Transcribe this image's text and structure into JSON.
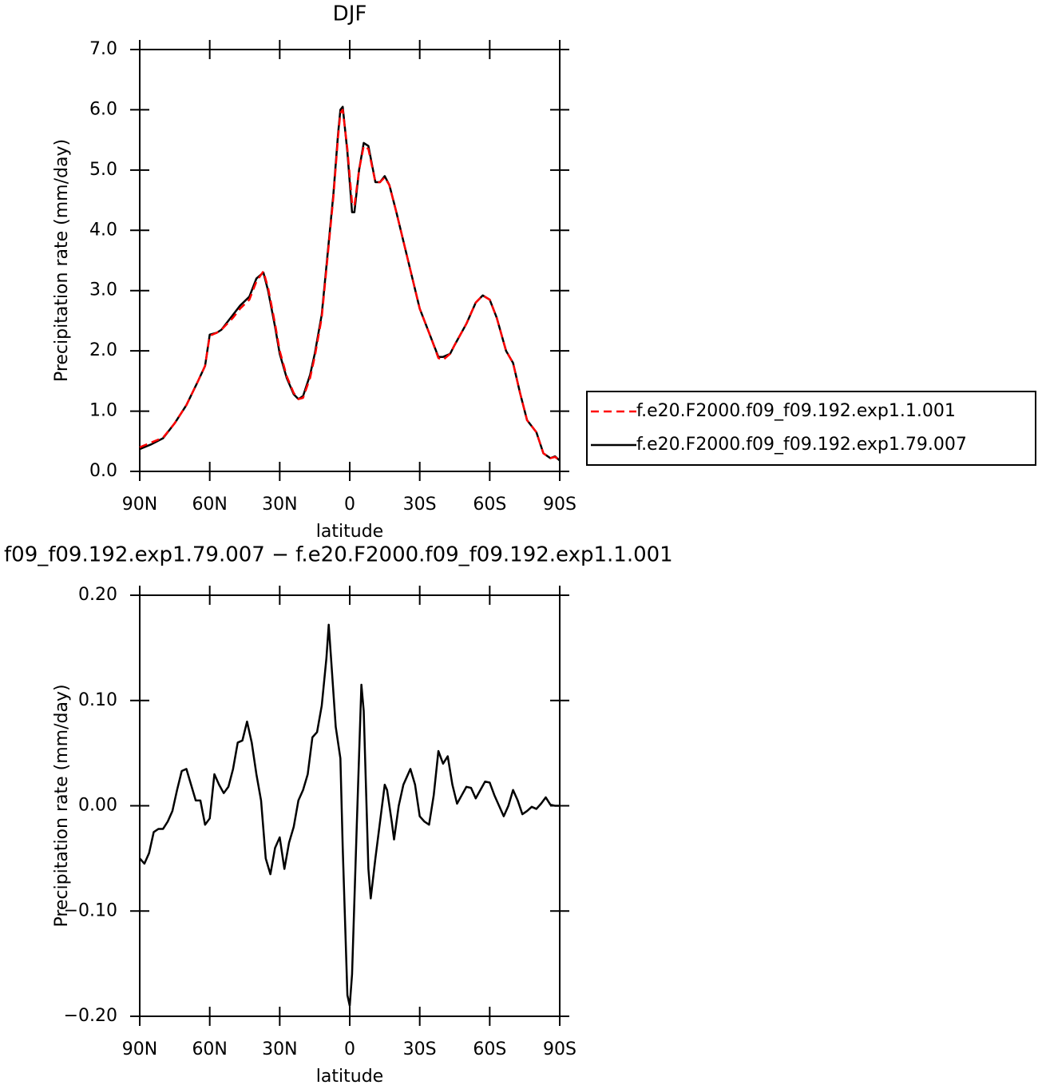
{
  "chart_data": [
    {
      "type": "line",
      "title": "DJF",
      "xlabel": "latitude",
      "ylabel": "Precipitation rate (mm/day)",
      "x": [
        90,
        85,
        80,
        75,
        70,
        65,
        62,
        60,
        57,
        55,
        50,
        47,
        43,
        40,
        37,
        35,
        32,
        30,
        27,
        24,
        22,
        20,
        17,
        15,
        12,
        10,
        7,
        5,
        4,
        3,
        1,
        -1,
        -2,
        -4,
        -6,
        -8,
        -11,
        -13,
        -15,
        -17,
        -20,
        -25,
        -30,
        -35,
        -38,
        -40,
        -43,
        -45,
        -50,
        -54,
        -57,
        -60,
        -63,
        -67,
        -70,
        -73,
        -76,
        -80,
        -83,
        -86,
        -88,
        -90
      ],
      "series": [
        {
          "name": "f.e20.F2000.f09_f09.192.exp1.1.001",
          "color": "#ff0000",
          "linestyle": "dashed",
          "values": [
            0.4,
            0.48,
            0.56,
            0.8,
            1.1,
            1.5,
            1.75,
            2.25,
            2.3,
            2.35,
            2.55,
            2.7,
            2.85,
            3.15,
            3.32,
            3.05,
            2.45,
            2.0,
            1.58,
            1.3,
            1.2,
            1.22,
            1.55,
            1.9,
            2.55,
            3.35,
            4.55,
            5.55,
            5.95,
            6.0,
            5.35,
            4.45,
            4.4,
            5.0,
            5.4,
            5.35,
            4.8,
            4.8,
            4.88,
            4.75,
            4.3,
            3.5,
            2.7,
            2.2,
            1.88,
            1.85,
            1.95,
            2.1,
            2.45,
            2.8,
            2.92,
            2.85,
            2.55,
            2.0,
            1.8,
            1.3,
            0.85,
            0.65,
            0.3,
            0.22,
            0.24,
            0.18
          ]
        },
        {
          "name": "f.e20.F2000.f09_f09.192.exp1.79.007",
          "color": "#000000",
          "linestyle": "solid",
          "values": [
            0.37,
            0.45,
            0.55,
            0.8,
            1.1,
            1.5,
            1.75,
            2.27,
            2.3,
            2.35,
            2.6,
            2.75,
            2.9,
            3.2,
            3.3,
            3.0,
            2.4,
            1.95,
            1.55,
            1.28,
            1.2,
            1.25,
            1.6,
            1.95,
            2.6,
            3.4,
            4.6,
            5.6,
            6.0,
            6.05,
            5.3,
            4.3,
            4.3,
            5.0,
            5.45,
            5.4,
            4.8,
            4.8,
            4.9,
            4.75,
            4.3,
            3.5,
            2.7,
            2.2,
            1.9,
            1.9,
            1.95,
            2.1,
            2.45,
            2.8,
            2.92,
            2.85,
            2.55,
            2.0,
            1.8,
            1.3,
            0.85,
            0.65,
            0.3,
            0.22,
            0.25,
            0.18
          ]
        }
      ],
      "xlim": [
        90,
        -90
      ],
      "xticks": [
        {
          "value": 90,
          "label": "90N"
        },
        {
          "value": 60,
          "label": "60N"
        },
        {
          "value": 30,
          "label": "30N"
        },
        0,
        {
          "value": -30,
          "label": "30S"
        },
        {
          "value": -60,
          "label": "60S"
        },
        {
          "value": -90,
          "label": "90S"
        }
      ],
      "ylim": [
        0,
        7
      ],
      "yticks": [
        {
          "value": 0,
          "label": "0.0"
        },
        {
          "value": 1,
          "label": "1.0"
        },
        {
          "value": 2,
          "label": "2.0"
        },
        {
          "value": 3,
          "label": "3.0"
        },
        {
          "value": 4,
          "label": "4.0"
        },
        {
          "value": 5,
          "label": "5.0"
        },
        {
          "value": 6,
          "label": "6.0"
        },
        {
          "value": 7,
          "label": "7.0"
        }
      ],
      "legend": "outside-right"
    },
    {
      "type": "line",
      "title": "f09_f09.192.exp1.79.007 − f.e20.F2000.f09_f09.192.exp1.1.001",
      "xlabel": "latitude",
      "ylabel": "Precipitation rate (mm/day)",
      "x": [
        90,
        88,
        86,
        84,
        82,
        80,
        78,
        76,
        74,
        72,
        70,
        68,
        66,
        64,
        62,
        60,
        58,
        56,
        54,
        52,
        50,
        48,
        46,
        44,
        42,
        40,
        38,
        36,
        34,
        32,
        30,
        28,
        26,
        24,
        22,
        20,
        18,
        16,
        14,
        12,
        10,
        9,
        8,
        6,
        4,
        3,
        1,
        0,
        -1,
        -3,
        -5,
        -6,
        -8,
        -9,
        -11,
        -13,
        -15,
        -16,
        -18,
        -19,
        -21,
        -23,
        -26,
        -28,
        -30,
        -32,
        -34,
        -36,
        -38,
        -40,
        -42,
        -44,
        -46,
        -48,
        -50,
        -52,
        -54,
        -56,
        -58,
        -60,
        -62,
        -64,
        -66,
        -68,
        -70,
        -72,
        -74,
        -76,
        -78,
        -80,
        -82,
        -84,
        -86,
        -88,
        -90
      ],
      "series": [
        {
          "name": null,
          "color": "#000000",
          "linestyle": "solid",
          "values": [
            -0.05,
            -0.055,
            -0.045,
            -0.025,
            -0.022,
            -0.022,
            -0.015,
            -0.005,
            0.015,
            0.033,
            0.035,
            0.02,
            0.005,
            0.005,
            -0.018,
            -0.012,
            0.03,
            0.02,
            0.012,
            0.018,
            0.035,
            0.06,
            0.062,
            0.08,
            0.06,
            0.03,
            0.005,
            -0.05,
            -0.065,
            -0.04,
            -0.03,
            -0.06,
            -0.035,
            -0.02,
            0.005,
            0.015,
            0.03,
            0.065,
            0.07,
            0.095,
            0.14,
            0.172,
            0.14,
            0.075,
            0.045,
            -0.04,
            -0.18,
            -0.19,
            -0.16,
            -0.02,
            0.115,
            0.09,
            -0.06,
            -0.088,
            -0.05,
            -0.015,
            0.02,
            0.015,
            -0.015,
            -0.032,
            0.0,
            0.02,
            0.035,
            0.02,
            -0.01,
            -0.015,
            -0.018,
            0.01,
            0.052,
            0.04,
            0.047,
            0.02,
            0.002,
            0.01,
            0.018,
            0.017,
            0.007,
            0.015,
            0.023,
            0.022,
            0.01,
            0.0,
            -0.01,
            0.0,
            0.015,
            0.005,
            -0.008,
            -0.005,
            -0.001,
            -0.003,
            0.002,
            0.008,
            0.001,
            0.0,
            0.0
          ]
        }
      ],
      "xlim": [
        90,
        -90
      ],
      "xticks": [
        {
          "value": 90,
          "label": "90N"
        },
        {
          "value": 60,
          "label": "60N"
        },
        {
          "value": 30,
          "label": "30N"
        },
        0,
        {
          "value": -30,
          "label": "30S"
        },
        {
          "value": -60,
          "label": "60S"
        },
        {
          "value": -90,
          "label": "90S"
        }
      ],
      "ylim": [
        -0.2,
        0.2
      ],
      "yticks": [
        {
          "value": -0.2,
          "label": "−0.20"
        },
        {
          "value": -0.1,
          "label": "−0.10"
        },
        {
          "value": 0,
          "label": "0.00"
        },
        {
          "value": 0.1,
          "label": "0.10"
        },
        {
          "value": 0.2,
          "label": "0.20"
        }
      ]
    }
  ]
}
